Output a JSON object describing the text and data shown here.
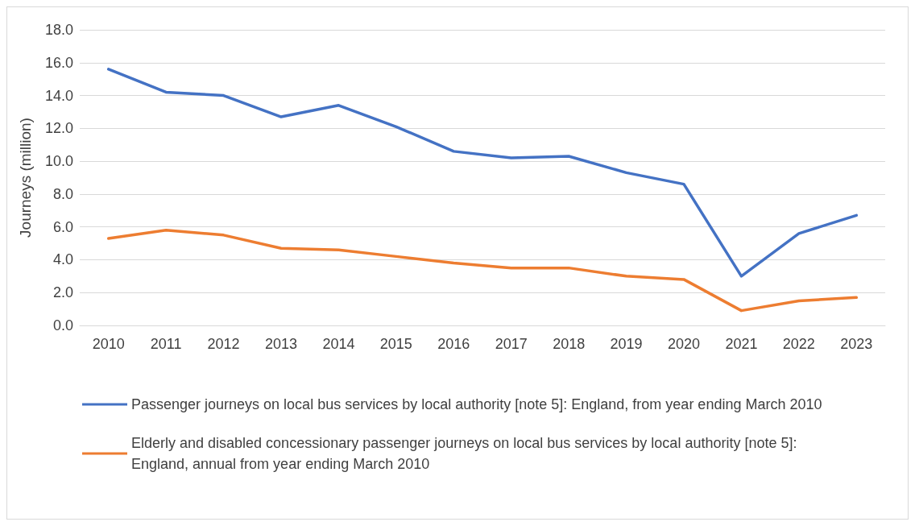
{
  "chart_data": {
    "type": "line",
    "ylabel": "Journeys (million)",
    "categories": [
      "2010",
      "2011",
      "2012",
      "2013",
      "2014",
      "2015",
      "2016",
      "2017",
      "2018",
      "2019",
      "2020",
      "2021",
      "2022",
      "2023"
    ],
    "series": [
      {
        "name": "Passenger journeys on local bus services by local authority [note 5]: England, from year ending March 2010",
        "color": "#4472c4",
        "values": [
          15.6,
          14.2,
          14.0,
          12.7,
          13.4,
          12.1,
          10.6,
          10.2,
          10.3,
          9.3,
          8.6,
          3.0,
          5.6,
          6.7
        ]
      },
      {
        "name": "Elderly and disabled concessionary passenger journeys on local bus services by local authority [note 5]: England, annual from year ending March 2010",
        "color": "#ed7d31",
        "values": [
          5.3,
          5.8,
          5.5,
          4.7,
          4.6,
          4.2,
          3.8,
          3.5,
          3.5,
          3.0,
          2.8,
          0.9,
          1.5,
          1.7
        ]
      }
    ],
    "ylim": [
      0,
      18
    ],
    "yticks": [
      {
        "value": 0,
        "label": "0.0"
      },
      {
        "value": 2,
        "label": "2.0"
      },
      {
        "value": 4,
        "label": "4.0"
      },
      {
        "value": 6,
        "label": "6.0"
      },
      {
        "value": 8,
        "label": "8.0"
      },
      {
        "value": 10,
        "label": "10.0"
      },
      {
        "value": 12,
        "label": "12.0"
      },
      {
        "value": 14,
        "label": "14.0"
      },
      {
        "value": 16,
        "label": "16.0"
      },
      {
        "value": 18,
        "label": "18.0"
      }
    ],
    "grid": "y",
    "legend": "bottom",
    "marker": "none",
    "line_style": "solid"
  }
}
